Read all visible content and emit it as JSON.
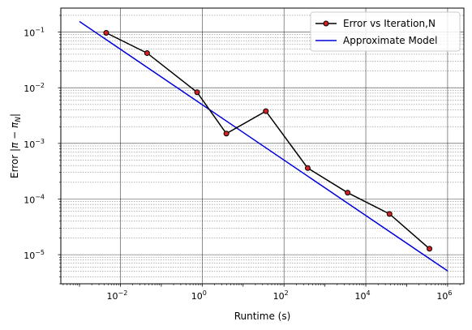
{
  "chart_data": {
    "type": "line",
    "xscale": "log",
    "yscale": "log",
    "xlabel": "Runtime (s)",
    "ylabel_prefix": "Error ",
    "ylabel_math": "|π − π",
    "ylabel_sub": "N",
    "ylabel_suffix": "|",
    "xlim": [
      0.00035,
      2500000
    ],
    "ylim": [
      3e-06,
      0.27
    ],
    "grid": "major and minor on y, major on x",
    "legend_position": "top-right",
    "x_ticks": [
      {
        "value": 0.01,
        "base": "10",
        "exp": "−2"
      },
      {
        "value": 1,
        "base": "10",
        "exp": "0"
      },
      {
        "value": 100,
        "base": "10",
        "exp": "2"
      },
      {
        "value": 10000,
        "base": "10",
        "exp": "4"
      },
      {
        "value": 1000000,
        "base": "10",
        "exp": "6"
      }
    ],
    "y_ticks": [
      {
        "value": 0.1,
        "base": "10",
        "exp": "−1"
      },
      {
        "value": 0.01,
        "base": "10",
        "exp": "−2"
      },
      {
        "value": 0.001,
        "base": "10",
        "exp": "−3"
      },
      {
        "value": 0.0001,
        "base": "10",
        "exp": "−4"
      },
      {
        "value": 1e-05,
        "base": "10",
        "exp": "−5"
      }
    ],
    "series": [
      {
        "name": "Error vs Iteration,N",
        "color": "#000000",
        "marker_color": "#d62020",
        "marker": "circle",
        "points": [
          {
            "x": 0.0045,
            "y": 0.097
          },
          {
            "x": 0.045,
            "y": 0.042
          },
          {
            "x": 0.75,
            "y": 0.0083
          },
          {
            "x": 3.9,
            "y": 0.0015
          },
          {
            "x": 36,
            "y": 0.0038
          },
          {
            "x": 380,
            "y": 0.00036
          },
          {
            "x": 3600,
            "y": 0.00013
          },
          {
            "x": 38000,
            "y": 5.4e-05
          },
          {
            "x": 360000,
            "y": 1.28e-05
          }
        ]
      },
      {
        "name": "Approximate Model",
        "color": "#0000dd",
        "marker": "none",
        "points": [
          {
            "x": 0.001,
            "y": 0.155
          },
          {
            "x": 1000000,
            "y": 5.1e-06
          }
        ]
      }
    ]
  }
}
